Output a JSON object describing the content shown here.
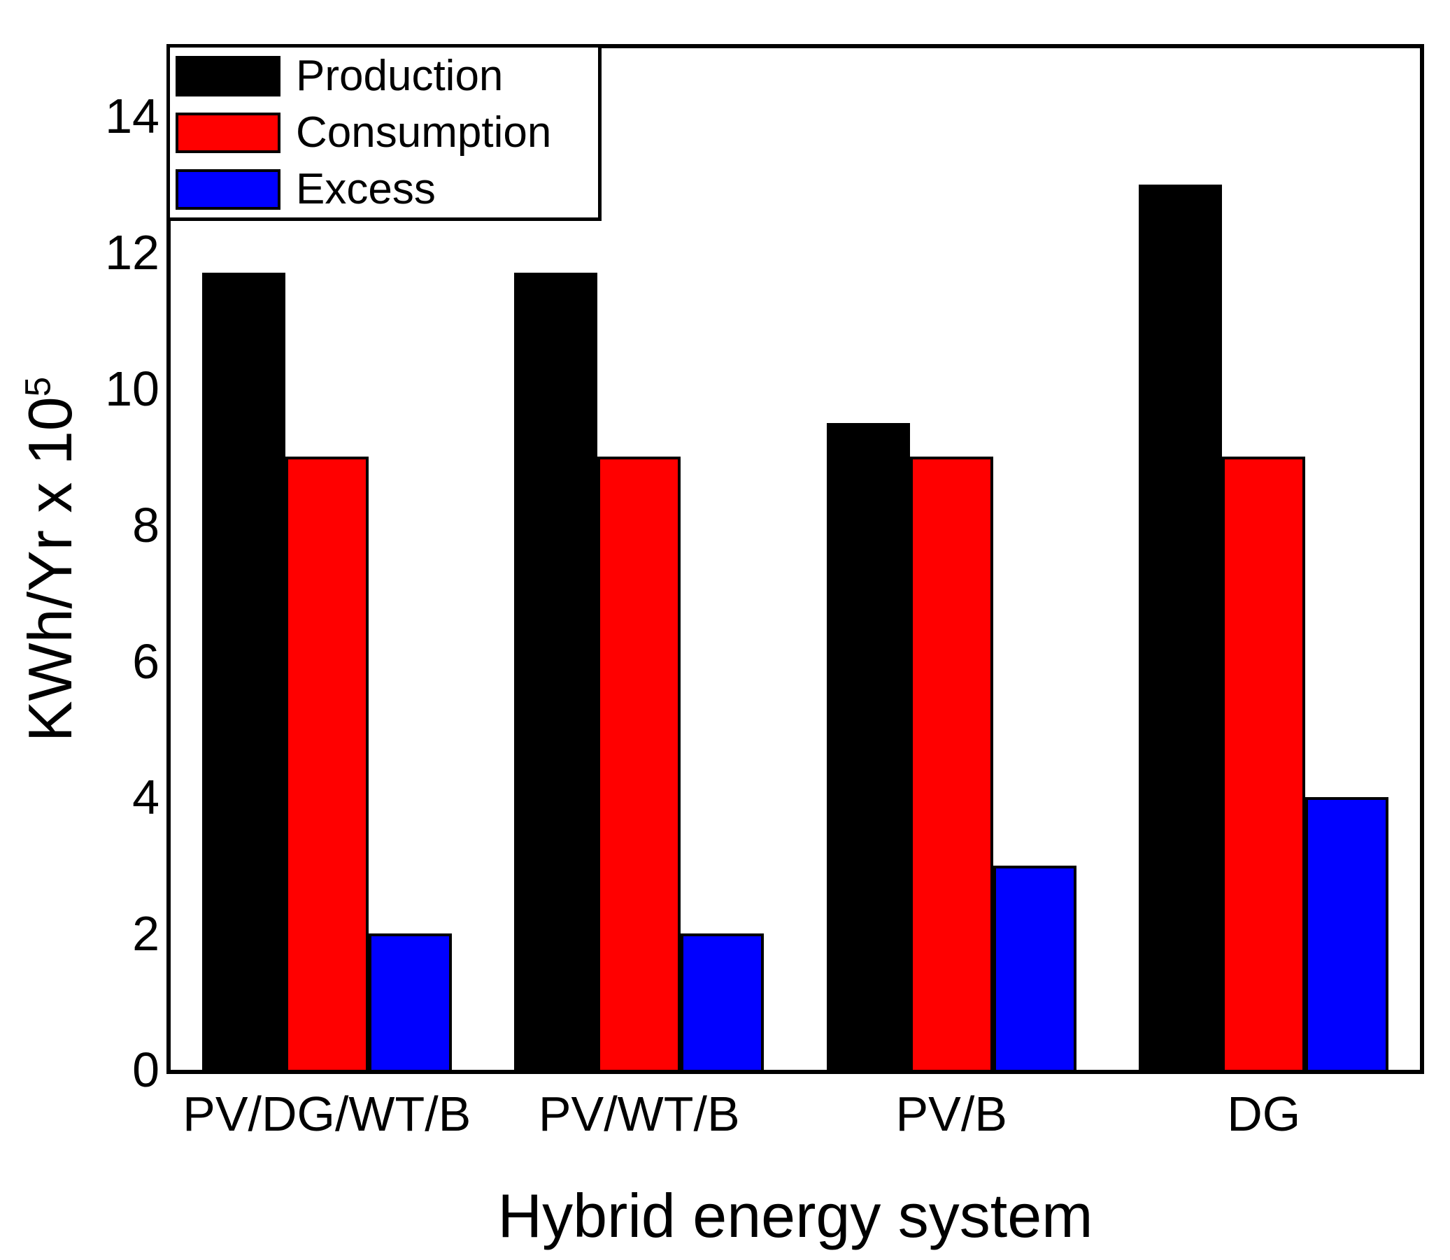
{
  "chart_data": {
    "type": "bar",
    "categories": [
      "PV/DG/WT/B",
      "PV/WT/B",
      "PV/B",
      "DG"
    ],
    "series": [
      {
        "name": "Production",
        "color": "#000000",
        "values": [
          11.7,
          11.7,
          9.5,
          13.0
        ]
      },
      {
        "name": "Consumption",
        "color": "#ff0000",
        "values": [
          9.0,
          9.0,
          9.0,
          9.0
        ]
      },
      {
        "name": "Excess",
        "color": "#0000ff",
        "values": [
          2.0,
          2.0,
          3.0,
          4.0
        ]
      }
    ],
    "title": "",
    "xlabel": "Hybrid energy system",
    "ylabel_main": "KWh/Yr x 10",
    "ylabel_sup": "5",
    "ylim": [
      0,
      15
    ],
    "yticks": [
      0,
      2,
      4,
      6,
      8,
      10,
      12,
      14
    ],
    "legend_position": "top-left",
    "grid": false,
    "axis_color": "#000000",
    "background_color": "#ffffff"
  }
}
